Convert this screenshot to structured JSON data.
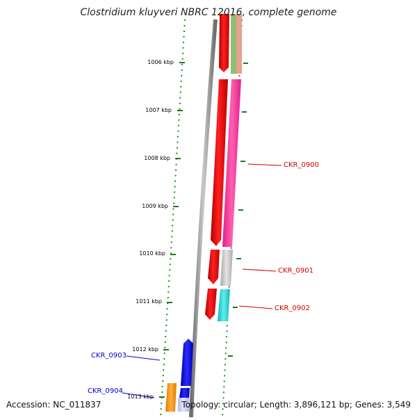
{
  "title": "Clostridium kluyveri NBRC 12016, complete genome",
  "footer": {
    "accession": "Accession: NC_011837",
    "summary": "Topology: circular; Length: 3,896,121 bp; Genes: 3,549"
  },
  "ticks": [
    "1006 kbp",
    "1007 kbp",
    "1008 kbp",
    "1009 kbp",
    "1010 kbp",
    "1011 kbp",
    "1012 kbp",
    "1013 kbp"
  ],
  "gene_labels": {
    "ckr0900": "CKR_0900",
    "ckr0901": "CKR_0901",
    "ckr0902": "CKR_0902",
    "ckr0903": "CKR_0903",
    "ckr0904": "CKR_0904"
  },
  "colors": {
    "forward_strand_gene": "#ff0000",
    "reverse_label": "#0000cc",
    "forward_label": "#cc0000",
    "tick": "#006400",
    "backbone": "#888888"
  }
}
